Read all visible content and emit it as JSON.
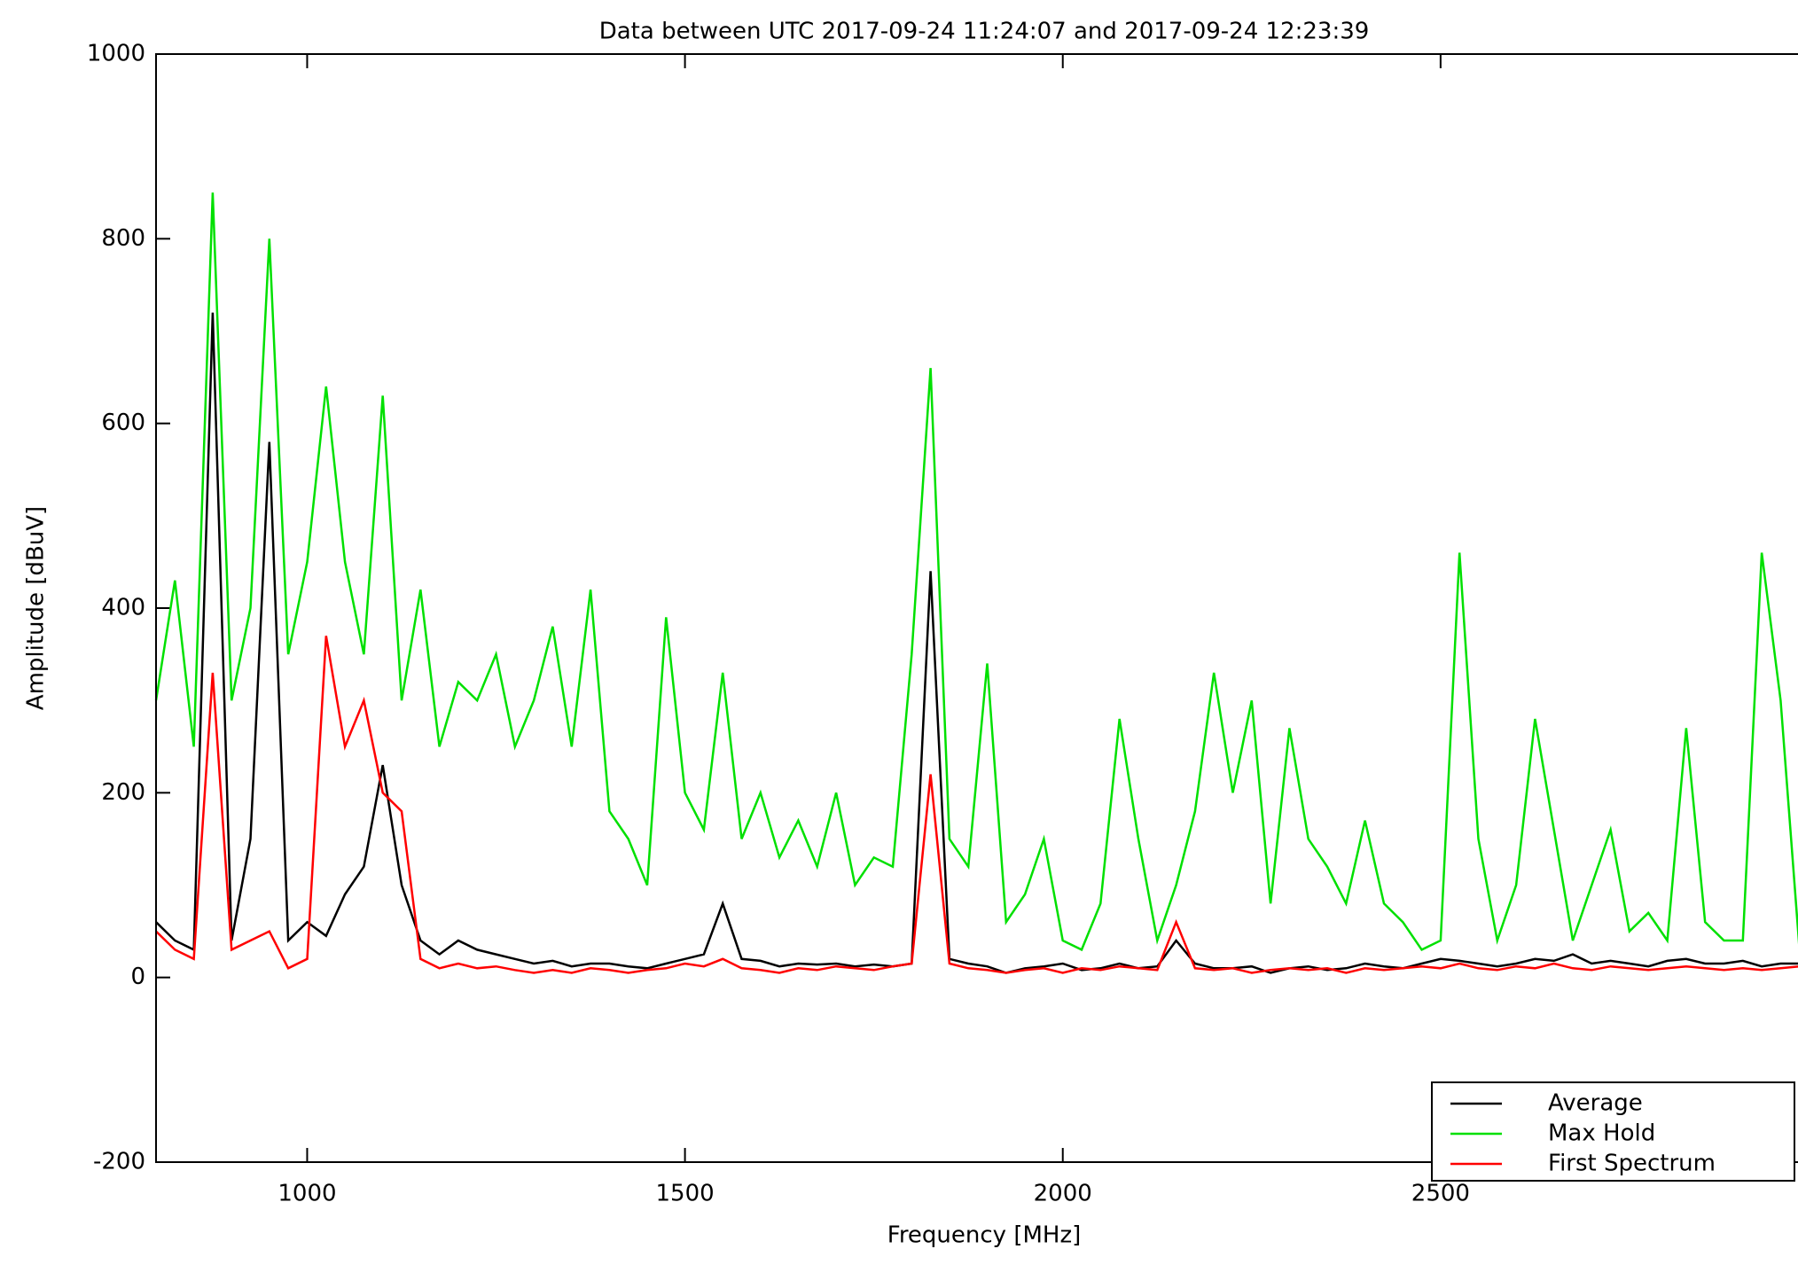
{
  "chart_data": {
    "type": "line",
    "title": "Data between UTC 2017-09-24 11:24:07 and 2017-09-24 12:23:39",
    "x_label": "Frequency [MHz]",
    "y_label": "Amplitude [dBuV]",
    "x": [
      800,
      825,
      850,
      875,
      900,
      925,
      950,
      975,
      1000,
      1025,
      1050,
      1075,
      1100,
      1125,
      1150,
      1175,
      1200,
      1225,
      1250,
      1275,
      1300,
      1325,
      1350,
      1375,
      1400,
      1425,
      1450,
      1475,
      1500,
      1525,
      1550,
      1575,
      1600,
      1625,
      1650,
      1675,
      1700,
      1725,
      1750,
      1775,
      1800,
      1825,
      1850,
      1875,
      1900,
      1925,
      1950,
      1975,
      2000,
      2025,
      2050,
      2075,
      2100,
      2125,
      2150,
      2175,
      2200,
      2225,
      2250,
      2275,
      2300,
      2325,
      2350,
      2375,
      2400,
      2425,
      2450,
      2475,
      2500,
      2525,
      2550,
      2575,
      2600,
      2625,
      2650,
      2675,
      2700,
      2725,
      2750,
      2775,
      2800,
      2825,
      2850,
      2875,
      2900,
      2925,
      2950,
      2975
    ],
    "series": [
      {
        "name": "Average",
        "color": "#000000",
        "values": [
          60,
          40,
          30,
          720,
          40,
          150,
          580,
          40,
          60,
          45,
          90,
          120,
          230,
          100,
          40,
          25,
          40,
          30,
          25,
          20,
          15,
          18,
          12,
          15,
          15,
          12,
          10,
          15,
          20,
          25,
          80,
          20,
          18,
          12,
          15,
          14,
          15,
          12,
          14,
          12,
          15,
          440,
          20,
          15,
          12,
          5,
          10,
          12,
          15,
          8,
          10,
          15,
          10,
          12,
          40,
          15,
          10,
          10,
          12,
          5,
          10,
          12,
          8,
          10,
          15,
          12,
          10,
          15,
          20,
          18,
          15,
          12,
          15,
          20,
          18,
          25,
          15,
          18,
          15,
          12,
          18,
          20,
          15,
          15,
          18,
          12,
          15,
          15
        ]
      },
      {
        "name": "Max Hold",
        "color": "#00e000",
        "values": [
          300,
          430,
          250,
          850,
          300,
          400,
          800,
          350,
          450,
          640,
          450,
          350,
          630,
          300,
          420,
          250,
          320,
          300,
          350,
          250,
          300,
          380,
          250,
          420,
          180,
          150,
          100,
          390,
          200,
          160,
          330,
          150,
          200,
          130,
          170,
          120,
          200,
          100,
          130,
          120,
          350,
          660,
          150,
          120,
          340,
          60,
          90,
          150,
          40,
          30,
          80,
          280,
          150,
          40,
          100,
          180,
          330,
          200,
          300,
          80,
          270,
          150,
          120,
          80,
          170,
          80,
          60,
          30,
          40,
          460,
          150,
          40,
          100,
          280,
          160,
          40,
          100,
          160,
          50,
          70,
          40,
          270,
          60,
          40,
          40,
          460,
          300,
          30
        ]
      },
      {
        "name": "First Spectrum",
        "color": "#ff0000",
        "values": [
          50,
          30,
          20,
          330,
          30,
          40,
          50,
          10,
          20,
          370,
          250,
          300,
          200,
          180,
          20,
          10,
          15,
          10,
          12,
          8,
          5,
          8,
          5,
          10,
          8,
          5,
          8,
          10,
          15,
          12,
          20,
          10,
          8,
          5,
          10,
          8,
          12,
          10,
          8,
          12,
          15,
          220,
          15,
          10,
          8,
          5,
          8,
          10,
          5,
          10,
          8,
          12,
          10,
          8,
          60,
          10,
          8,
          10,
          5,
          8,
          10,
          8,
          10,
          5,
          10,
          8,
          10,
          12,
          10,
          15,
          10,
          8,
          12,
          10,
          15,
          10,
          8,
          12,
          10,
          8,
          10,
          12,
          10,
          8,
          10,
          8,
          10,
          12
        ]
      }
    ],
    "xlim": [
      800,
      2973
    ],
    "ylim": [
      -200,
      1000
    ],
    "xticks": [
      1000,
      1500,
      2000,
      2500
    ],
    "yticks": [
      -200,
      0,
      200,
      400,
      600,
      800,
      1000
    ],
    "grid": false,
    "legend": "lower right"
  }
}
